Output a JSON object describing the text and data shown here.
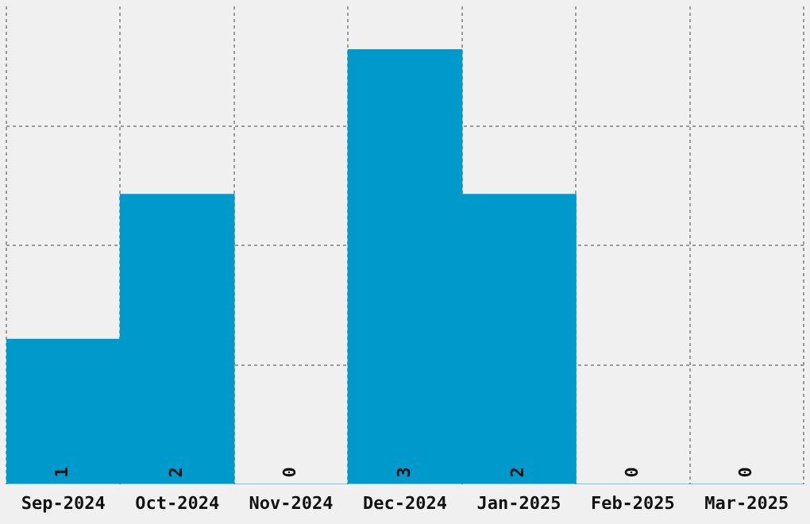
{
  "chart_data": {
    "type": "bar",
    "categories": [
      "Sep-2024",
      "Oct-2024",
      "Nov-2024",
      "Dec-2024",
      "Jan-2025",
      "Feb-2025",
      "Mar-2025"
    ],
    "values": [
      1,
      2,
      0,
      3,
      2,
      0,
      0
    ],
    "color": "#0099cc",
    "data_labels": true,
    "grid": true,
    "ylim": [
      0,
      3.3
    ],
    "yticks": [
      {
        "value": 0.82,
        "label": null
      },
      {
        "value": 1.65,
        "label": null
      },
      {
        "value": 2.47,
        "label": null
      }
    ],
    "tick_labels": "x"
  }
}
